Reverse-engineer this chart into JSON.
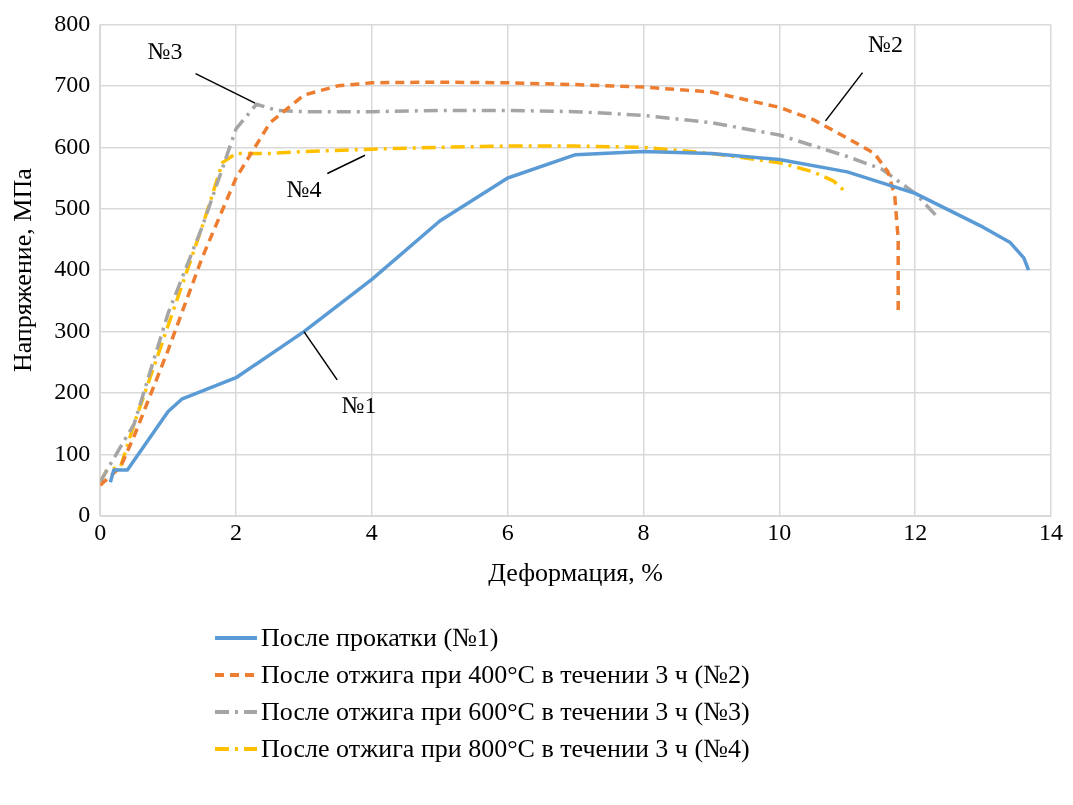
{
  "chart_data": {
    "type": "line",
    "xlabel": "Деформация, %",
    "ylabel": "Напряжение, МПа",
    "xlim": [
      0,
      14
    ],
    "xticks": [
      0,
      2,
      4,
      6,
      8,
      10,
      12,
      14
    ],
    "ylim": [
      0,
      800
    ],
    "yticks": [
      0,
      100,
      200,
      300,
      400,
      500,
      600,
      700,
      800
    ],
    "grid": true,
    "legend": "bottom",
    "marker": "none",
    "series": [
      {
        "name": "После прокатки (№1)",
        "color": "#5b9bd5",
        "line_style": "solid",
        "x": [
          0.15,
          0.2,
          0.4,
          1.0,
          1.2,
          2,
          3,
          4,
          5,
          6,
          7,
          8,
          9,
          10,
          11,
          12,
          13,
          13.4,
          13.6,
          13.67
        ],
        "values": [
          55,
          75,
          75,
          170,
          190,
          225,
          300,
          385,
          480,
          550,
          588,
          593,
          590,
          580,
          560,
          525,
          470,
          445,
          420,
          400
        ]
      },
      {
        "name": "После отжига при 400°C в течении 3 ч (№2)",
        "color": "#ed7d31",
        "line_style": "dashed",
        "x": [
          0,
          0.15,
          0.3,
          0.5,
          1,
          1.5,
          2,
          2.5,
          3,
          3.5,
          4,
          5,
          6,
          7,
          8,
          9,
          10,
          10.5,
          11,
          11.4,
          11.6,
          11.7,
          11.75,
          11.75
        ],
        "values": [
          50,
          65,
          80,
          130,
          270,
          420,
          550,
          640,
          685,
          700,
          705,
          706,
          705,
          702,
          698,
          690,
          665,
          645,
          615,
          590,
          560,
          520,
          450,
          335
        ]
      },
      {
        "name": "После отжига при 600°C в течении 3 ч (№3)",
        "color": "#a5a5a5",
        "line_style": "dashdot",
        "x": [
          0,
          0.1,
          0.5,
          1,
          1.5,
          2,
          2.3,
          2.6,
          3,
          4,
          5,
          6,
          7,
          8,
          9,
          10,
          11,
          11.5,
          12,
          12.3
        ],
        "values": [
          55,
          75,
          150,
          330,
          470,
          630,
          670,
          660,
          658,
          658,
          660,
          660,
          658,
          652,
          640,
          620,
          585,
          565,
          525,
          490
        ]
      },
      {
        "name": "После отжига при 800°C в течении 3 ч (№4)",
        "color": "#ffc000",
        "line_style": "dashdot",
        "x": [
          0,
          0.1,
          0.3,
          0.5,
          1,
          1.5,
          1.8,
          2,
          2.5,
          3,
          4,
          5,
          6,
          7,
          8,
          9,
          10,
          10.5,
          10.8,
          11
        ],
        "values": [
          55,
          75,
          80,
          150,
          310,
          470,
          575,
          590,
          590,
          593,
          597,
          600,
          602,
          602,
          600,
          590,
          575,
          560,
          545,
          525
        ]
      }
    ],
    "annotations": [
      {
        "text": "№3",
        "x": 2.28,
        "y": 672
      },
      {
        "text": "№2",
        "x": 10.68,
        "y": 643
      },
      {
        "text": "№4",
        "x": 3.9,
        "y": 587
      },
      {
        "text": "№1",
        "x": 3,
        "y": 300
      }
    ]
  }
}
